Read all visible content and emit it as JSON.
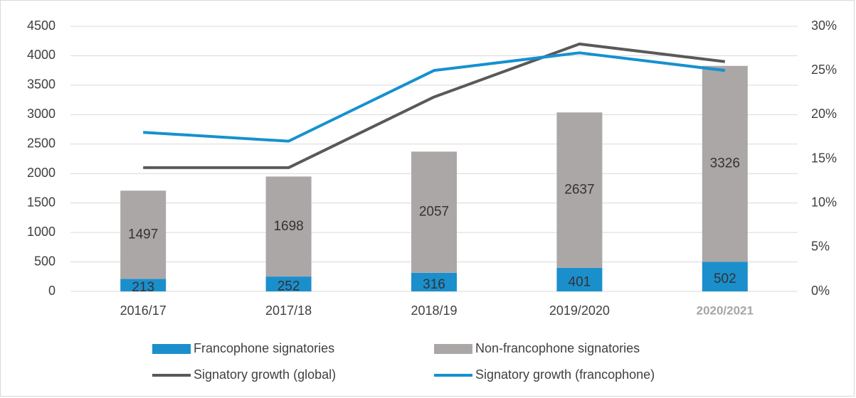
{
  "chart_data": {
    "type": "bar",
    "stacked": true,
    "categories": [
      "2016/17",
      "2017/18",
      "2018/19",
      "2019/2020",
      "2020/2021"
    ],
    "series": [
      {
        "name": "Francophone signatories",
        "type": "bar",
        "color": "#1b8fcc",
        "values": [
          213,
          252,
          316,
          401,
          502
        ]
      },
      {
        "name": "Non-francophone signatories",
        "type": "bar",
        "color": "#aba7a7",
        "values": [
          1497,
          1698,
          2057,
          2637,
          3326
        ]
      },
      {
        "name": "Signatory growth (global)",
        "type": "line",
        "axis": "y2",
        "color": "#595959",
        "values": [
          14,
          14,
          22,
          28,
          26
        ]
      },
      {
        "name": "Signatory growth (francophone)",
        "type": "line",
        "axis": "y2",
        "color": "#1591cf",
        "values": [
          18,
          17,
          25,
          27,
          25
        ]
      }
    ],
    "ylim": [
      0,
      4500
    ],
    "yticks": [
      0,
      500,
      1000,
      1500,
      2000,
      2500,
      3000,
      3500,
      4000,
      4500
    ],
    "y2lim": [
      0,
      30
    ],
    "y2ticks": [
      {
        "value": 0,
        "label": "0%"
      },
      {
        "value": 5,
        "label": "5%"
      },
      {
        "value": 10,
        "label": "10%"
      },
      {
        "value": 15,
        "label": "15%"
      },
      {
        "value": 20,
        "label": "20%"
      },
      {
        "value": 25,
        "label": "25%"
      },
      {
        "value": 30,
        "label": "30%"
      }
    ],
    "grid": true,
    "legend": "bottom"
  }
}
